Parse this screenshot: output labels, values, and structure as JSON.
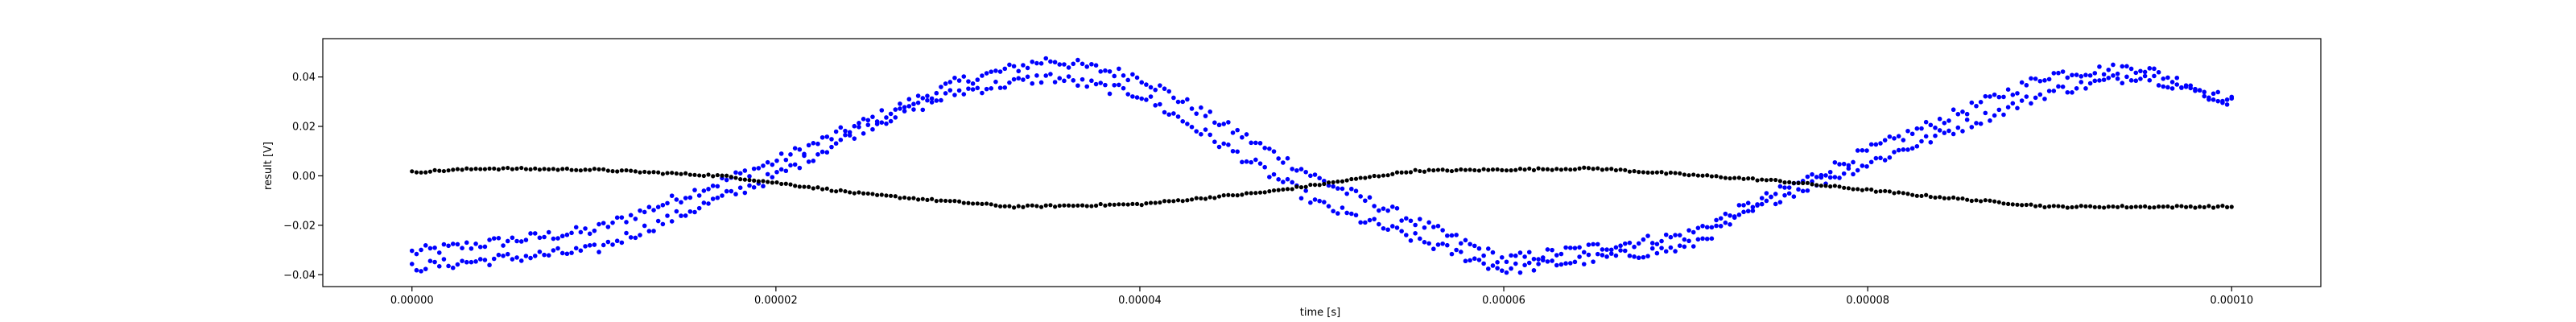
{
  "chart_data": {
    "type": "scatter",
    "title": "",
    "xlabel": "time [s]",
    "ylabel": "result [V]",
    "xlim": [
      -4.9e-06,
      0.0001049
    ],
    "ylim": [
      -0.0448,
      0.0555
    ],
    "grid": false,
    "legend": "none",
    "x_ticks": [
      0.0,
      2e-05,
      4e-05,
      6e-05,
      8e-05,
      0.0001
    ],
    "x_tick_labels": [
      "0.00000",
      "0.00002",
      "0.00004",
      "0.00006",
      "0.00008",
      "0.00010"
    ],
    "y_ticks": [
      -0.04,
      -0.02,
      0.0,
      0.02,
      0.04
    ],
    "y_tick_labels": [
      "−0.04",
      "−0.02",
      "0.00",
      "0.02",
      "0.04"
    ],
    "series": [
      {
        "color": "#0000ff",
        "marker": "dot",
        "x_start": 0.0,
        "x_end": 0.0001,
        "points_per_trace": 400,
        "traces": [
          {
            "x": [
              0.0,
              1e-05,
              2e-05,
              3e-05,
              3.5e-05,
              4e-05,
              5e-05,
              6e-05,
              7e-05,
              8e-05,
              9e-05,
              9.5e-05,
              0.0001
            ],
            "y": [
              -0.031,
              -0.022,
              0.006,
              0.038,
              0.047,
              0.04,
              -0.002,
              -0.034,
              -0.024,
              0.01,
              0.041,
              0.044,
              0.03
            ]
          },
          {
            "x": [
              0.0,
              1e-05,
              2e-05,
              2.5e-05,
              3e-05,
              3.5e-05,
              4e-05,
              5e-05,
              6e-05,
              7e-05,
              7.5e-05,
              8e-05,
              9e-05,
              9.5e-05,
              0.0001
            ],
            "y": [
              -0.037,
              -0.03,
              0.0,
              0.02,
              0.034,
              0.04,
              0.033,
              -0.012,
              -0.038,
              -0.029,
              -0.009,
              0.005,
              0.034,
              0.041,
              0.03
            ]
          }
        ]
      },
      {
        "color": "#000000",
        "marker": "dot",
        "x_start": 0.0,
        "x_end": 0.0001,
        "points_per_trace": 400,
        "traces": [
          {
            "x": [
              0.0,
              4e-06,
              1e-05,
              1.7e-05,
              2.5e-05,
              3.3e-05,
              4e-05,
              4.7e-05,
              5.5e-05,
              6.5e-05,
              7.5e-05,
              8.3e-05,
              9e-05,
              0.0001
            ],
            "y": [
              0.0015,
              0.003,
              0.0025,
              0.0,
              -0.0075,
              -0.0125,
              -0.0115,
              -0.0065,
              0.002,
              0.003,
              -0.002,
              -0.008,
              -0.0125,
              -0.0125
            ]
          }
        ]
      }
    ]
  }
}
